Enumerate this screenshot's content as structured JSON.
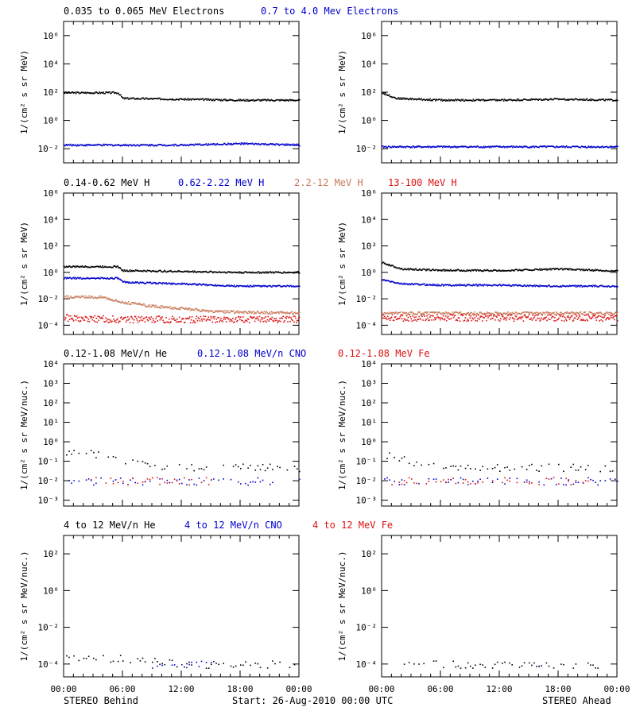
{
  "figure": {
    "left_label": "STEREO Behind",
    "center_label": "Start: 26-Aug-2010 00:00 UTC",
    "right_label": "STEREO Ahead",
    "x_tick_labels": [
      "00:00",
      "06:00",
      "12:00",
      "18:00",
      "00:00"
    ]
  },
  "rows": [
    {
      "ylabel": "1/(cm² s sr MeV)",
      "legend": [
        {
          "text": "0.035 to 0.065 MeV Electrons",
          "color": "#000000"
        },
        {
          "text": "0.7 to 4.0 Mev Electrons",
          "color": "#0000cc"
        }
      ],
      "y_tick_labels": [
        "10⁻²",
        "10⁰",
        "10²",
        "10⁴",
        "10⁶"
      ]
    },
    {
      "ylabel": "1/(cm² s sr MeV)",
      "legend": [
        {
          "text": "0.14-0.62 MeV H",
          "color": "#000000"
        },
        {
          "text": "0.62-2.22 MeV H",
          "color": "#0000cc"
        },
        {
          "text": "2.2-12 MeV H",
          "color": "#c87a5a"
        },
        {
          "text": "13-100 MeV H",
          "color": "#dd1111"
        }
      ],
      "y_tick_labels": [
        "10⁻⁴",
        "10⁻²",
        "10⁰",
        "10²",
        "10⁴",
        "10⁶"
      ]
    },
    {
      "ylabel": "1/(cm² s sr MeV/nuc.)",
      "legend": [
        {
          "text": "0.12-1.08 MeV/n He",
          "color": "#000000"
        },
        {
          "text": "0.12-1.08 MeV/n CNO",
          "color": "#0000cc"
        },
        {
          "text": "0.12-1.08 MeV Fe",
          "color": "#dd1111"
        }
      ],
      "y_tick_labels": [
        "10⁻³",
        "10⁻²",
        "10⁻¹",
        "10⁰",
        "10¹",
        "10²",
        "10³",
        "10⁴"
      ]
    },
    {
      "ylabel": "1/(cm² s sr MeV/nuc.)",
      "legend": [
        {
          "text": "4 to 12 MeV/n He",
          "color": "#000000"
        },
        {
          "text": "4 to 12 MeV/n CNO",
          "color": "#0000cc"
        },
        {
          "text": "4 to 12 MeV Fe",
          "color": "#dd1111"
        }
      ],
      "y_tick_labels": [
        "10⁻⁴",
        "10⁻²",
        "10⁰",
        "10²"
      ]
    }
  ],
  "chart_data": [
    {
      "type": "scatter",
      "panel": "STEREO Behind - electrons",
      "ylim": [
        0.001,
        10000000
      ],
      "yscale": "log",
      "x_hours": [
        0,
        24
      ],
      "series": [
        {
          "name": "0.035 to 0.065 MeV Electrons",
          "color": "#000000",
          "points": [
            [
              0,
              100
            ],
            [
              5.5,
              100
            ],
            [
              6,
              40
            ],
            [
              12,
              35
            ],
            [
              18,
              30
            ],
            [
              24,
              30
            ]
          ]
        },
        {
          "name": "0.7 to 4.0 Mev Electrons",
          "color": "#0000cc",
          "points": [
            [
              0,
              0.02
            ],
            [
              6,
              0.02
            ],
            [
              12,
              0.02
            ],
            [
              18,
              0.025
            ],
            [
              24,
              0.02
            ]
          ]
        }
      ]
    },
    {
      "type": "scatter",
      "panel": "STEREO Ahead - electrons",
      "ylim": [
        0.001,
        10000000
      ],
      "yscale": "log",
      "x_hours": [
        0,
        24
      ],
      "series": [
        {
          "name": "0.035 to 0.065 MeV Electrons",
          "color": "#000000",
          "points": [
            [
              0,
              100
            ],
            [
              1.5,
              40
            ],
            [
              6,
              30
            ],
            [
              12,
              30
            ],
            [
              18,
              35
            ],
            [
              24,
              30
            ]
          ]
        },
        {
          "name": "0.7 to 4.0 Mev Electrons",
          "color": "#0000cc",
          "points": [
            [
              0,
              0.015
            ],
            [
              6,
              0.015
            ],
            [
              12,
              0.015
            ],
            [
              18,
              0.015
            ],
            [
              24,
              0.015
            ]
          ]
        }
      ]
    },
    {
      "type": "scatter",
      "panel": "STEREO Behind - protons",
      "ylim": [
        2e-05,
        1000000
      ],
      "yscale": "log",
      "x_hours": [
        0,
        24
      ],
      "series": [
        {
          "name": "0.14-0.62 MeV H",
          "color": "#000000",
          "points": [
            [
              0,
              3
            ],
            [
              5.5,
              3
            ],
            [
              6,
              1.5
            ],
            [
              12,
              1.3
            ],
            [
              18,
              1.1
            ],
            [
              24,
              1.1
            ]
          ]
        },
        {
          "name": "0.62-2.22 MeV H",
          "color": "#0000cc",
          "points": [
            [
              0,
              0.4
            ],
            [
              5.5,
              0.4
            ],
            [
              6,
              0.2
            ],
            [
              12,
              0.15
            ],
            [
              18,
              0.1
            ],
            [
              24,
              0.1
            ]
          ]
        },
        {
          "name": "2.2-12 MeV H",
          "color": "#c87a5a",
          "points": [
            [
              0,
              0.015
            ],
            [
              4,
              0.015
            ],
            [
              6,
              0.006
            ],
            [
              9,
              0.003
            ],
            [
              12,
              0.002
            ],
            [
              15,
              0.0012
            ],
            [
              20,
              0.001
            ],
            [
              24,
              0.001
            ]
          ]
        },
        {
          "name": "13-100 MeV H",
          "color": "#dd1111",
          "points": [
            [
              0,
              0.0004
            ],
            [
              6,
              0.0003
            ],
            [
              12,
              0.0003
            ],
            [
              18,
              0.0003
            ],
            [
              24,
              0.0003
            ]
          ]
        }
      ]
    },
    {
      "type": "scatter",
      "panel": "STEREO Ahead - protons",
      "ylim": [
        2e-05,
        1000000
      ],
      "yscale": "log",
      "x_hours": [
        0,
        24
      ],
      "series": [
        {
          "name": "0.14-0.62 MeV H",
          "color": "#000000",
          "points": [
            [
              0,
              6
            ],
            [
              2,
              2
            ],
            [
              6,
              1.6
            ],
            [
              12,
              1.5
            ],
            [
              18,
              2
            ],
            [
              24,
              1.4
            ]
          ]
        },
        {
          "name": "0.62-2.22 MeV H",
          "color": "#0000cc",
          "points": [
            [
              0,
              0.3
            ],
            [
              2,
              0.15
            ],
            [
              6,
              0.12
            ],
            [
              12,
              0.12
            ],
            [
              18,
              0.1
            ],
            [
              24,
              0.1
            ]
          ]
        },
        {
          "name": "2.2-12 MeV H",
          "color": "#c87a5a",
          "points": [
            [
              0,
              0.0009
            ],
            [
              12,
              0.0009
            ],
            [
              24,
              0.0009
            ]
          ]
        },
        {
          "name": "13-100 MeV H",
          "color": "#dd1111",
          "points": [
            [
              0,
              0.0004
            ],
            [
              12,
              0.0004
            ],
            [
              24,
              0.0004
            ]
          ]
        }
      ]
    },
    {
      "type": "scatter",
      "panel": "STEREO Behind - heavy ions low",
      "ylim": [
        0.0005,
        10000
      ],
      "yscale": "log",
      "x_hours": [
        0,
        24
      ],
      "series": [
        {
          "name": "0.12-1.08 MeV/n He",
          "color": "#000000",
          "points": [
            [
              0,
              0.2
            ],
            [
              2,
              0.3
            ],
            [
              4,
              0.2
            ],
            [
              6,
              0.1
            ],
            [
              12,
              0.05
            ],
            [
              18,
              0.05
            ],
            [
              24,
              0.05
            ]
          ]
        },
        {
          "name": "0.12-1.08 MeV/n CNO",
          "color": "#0000cc",
          "points": [
            [
              0,
              0.01
            ],
            [
              6,
              0.01
            ],
            [
              12,
              0.01
            ],
            [
              18,
              0.01
            ],
            [
              24,
              0.01
            ]
          ]
        },
        {
          "name": "0.12-1.08 MeV Fe",
          "color": "#dd1111",
          "points": [
            [
              2.5,
              0.01
            ],
            [
              6,
              0.01
            ],
            [
              15,
              0.01
            ]
          ]
        }
      ]
    },
    {
      "type": "scatter",
      "panel": "STEREO Ahead - heavy ions low",
      "ylim": [
        0.0005,
        10000
      ],
      "yscale": "log",
      "x_hours": [
        0,
        24
      ],
      "series": [
        {
          "name": "0.12-1.08 MeV/n He",
          "color": "#000000",
          "points": [
            [
              0,
              0.15
            ],
            [
              1,
              0.2
            ],
            [
              3,
              0.1
            ],
            [
              6,
              0.05
            ],
            [
              12,
              0.05
            ],
            [
              18,
              0.05
            ],
            [
              24,
              0.05
            ]
          ]
        },
        {
          "name": "0.12-1.08 MeV/n CNO",
          "color": "#0000cc",
          "points": [
            [
              0,
              0.01
            ],
            [
              6,
              0.01
            ],
            [
              12,
              0.01
            ],
            [
              18,
              0.01
            ],
            [
              24,
              0.01
            ]
          ]
        },
        {
          "name": "0.12-1.08 MeV Fe",
          "color": "#dd1111",
          "points": [
            [
              1,
              0.01
            ],
            [
              7,
              0.01
            ],
            [
              13,
              0.01
            ],
            [
              21,
              0.01
            ]
          ]
        }
      ]
    },
    {
      "type": "scatter",
      "panel": "STEREO Behind - heavy ions high",
      "ylim": [
        2e-05,
        1000
      ],
      "yscale": "log",
      "x_hours": [
        0,
        24
      ],
      "series": [
        {
          "name": "4 to 12 MeV/n He",
          "color": "#000000",
          "points": [
            [
              0,
              0.0002
            ],
            [
              3,
              0.0003
            ],
            [
              5,
              0.0002
            ],
            [
              8,
              0.0002
            ],
            [
              12,
              0.0001
            ],
            [
              18,
              0.0001
            ],
            [
              24,
              0.0001
            ]
          ]
        },
        {
          "name": "4 to 12 MeV/n CNO",
          "color": "#0000cc",
          "points": [
            [
              9,
              0.0001
            ],
            [
              15,
              0.0001
            ]
          ]
        },
        {
          "name": "4 to 12 MeV Fe",
          "color": "#dd1111",
          "points": []
        }
      ]
    },
    {
      "type": "scatter",
      "panel": "STEREO Ahead - heavy ions high",
      "ylim": [
        2e-05,
        1000
      ],
      "yscale": "log",
      "x_hours": [
        0,
        24
      ],
      "series": [
        {
          "name": "4 to 12 MeV/n He",
          "color": "#000000",
          "points": [
            [
              2,
              0.0001
            ],
            [
              6,
              0.0001
            ],
            [
              12,
              0.0001
            ],
            [
              18,
              0.0001
            ],
            [
              22,
              0.0001
            ]
          ]
        },
        {
          "name": "4 to 12 MeV/n CNO",
          "color": "#0000cc",
          "points": [
            [
              16,
              0.0001
            ]
          ]
        },
        {
          "name": "4 to 12 MeV Fe",
          "color": "#dd1111",
          "points": []
        }
      ]
    }
  ]
}
